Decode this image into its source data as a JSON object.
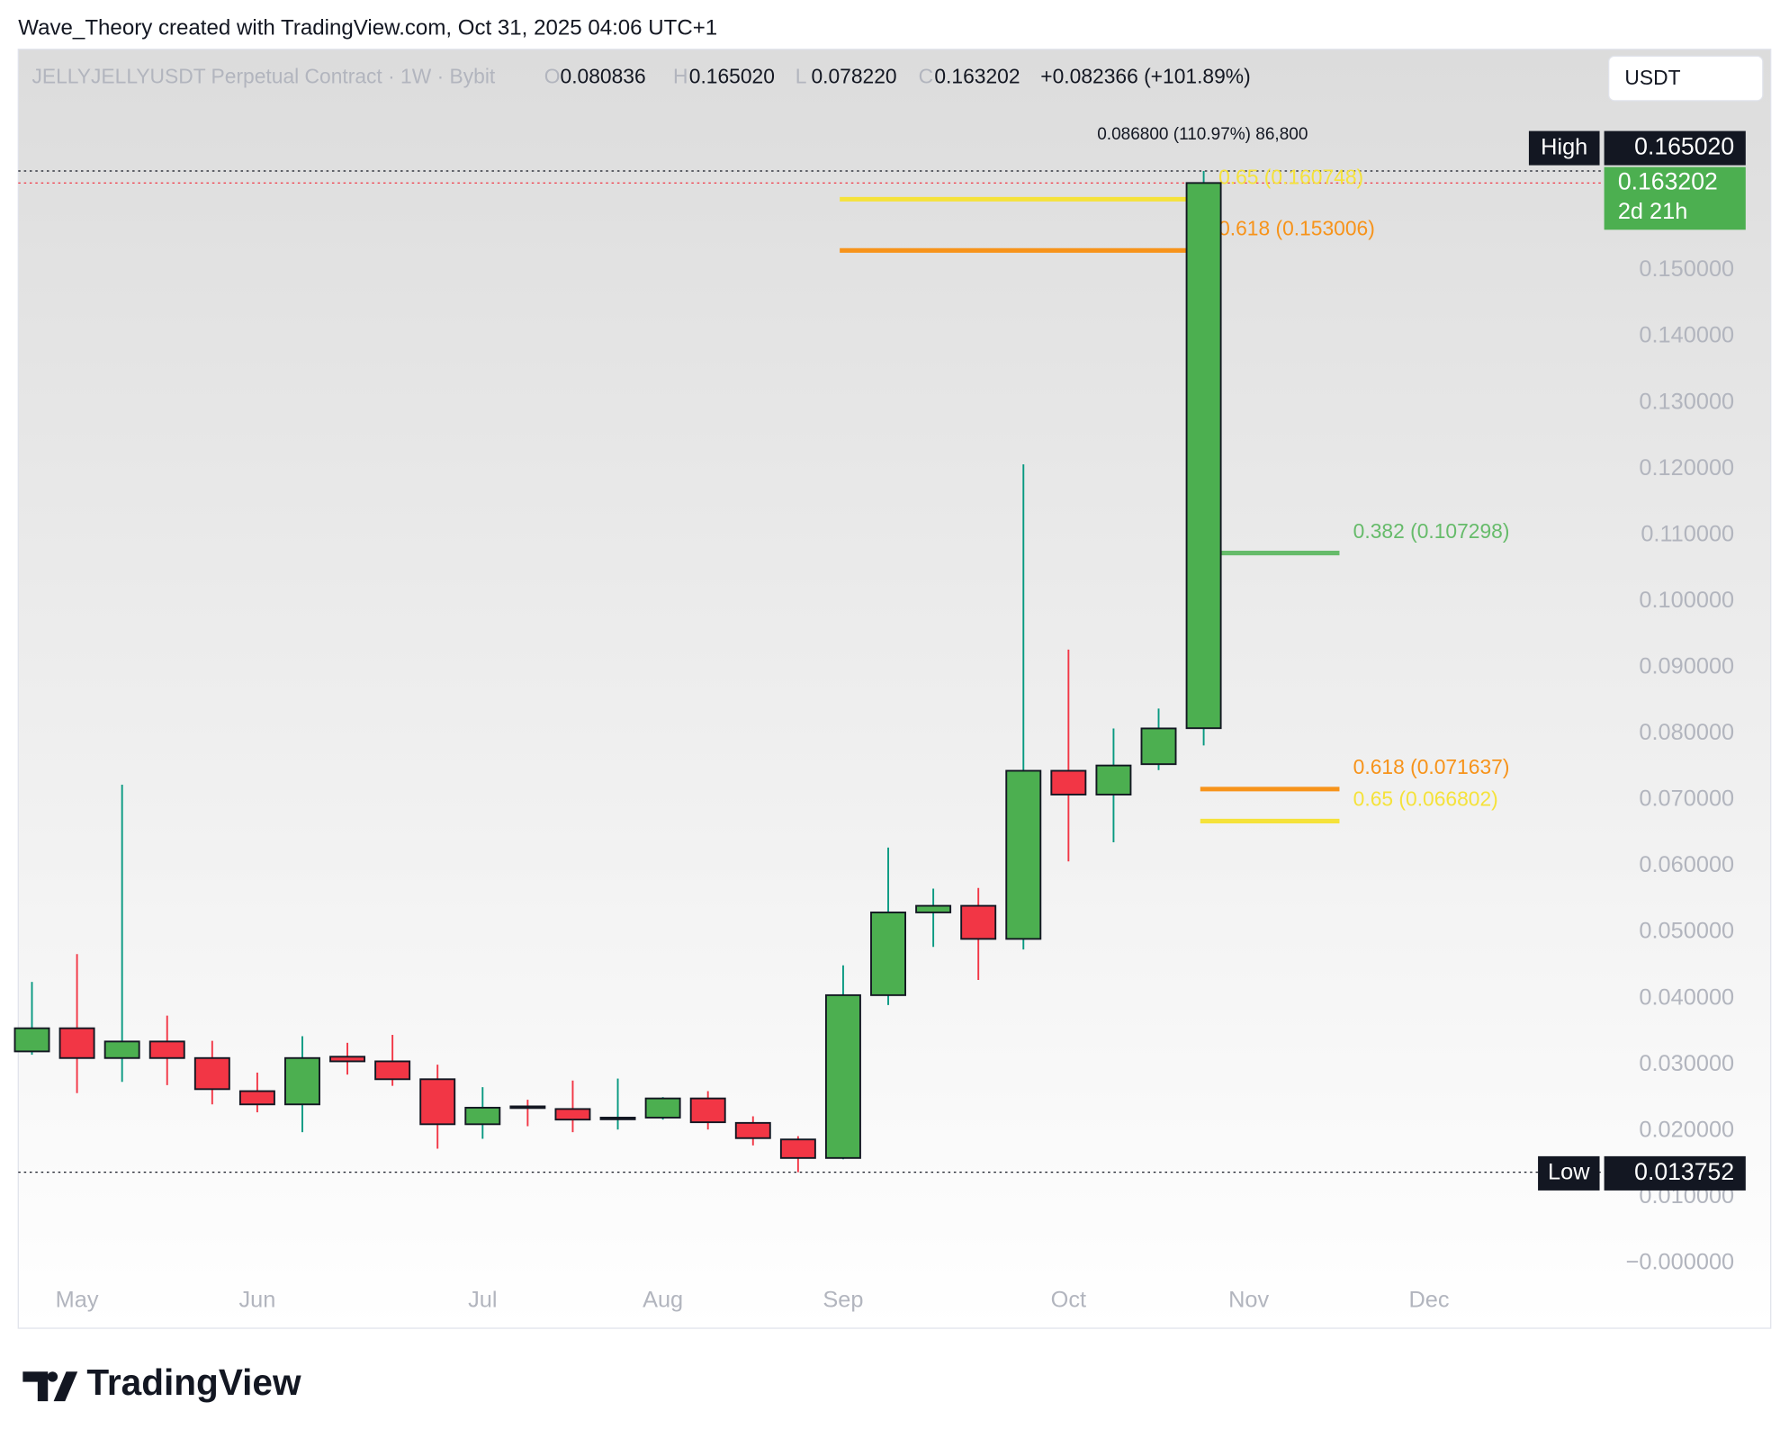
{
  "header": {
    "attribution": "Wave_Theory created with TradingView.com, Oct 31, 2025 04:06 UTC+1",
    "currency": "USDT",
    "logo": "TradingView"
  },
  "chart_data": {
    "type": "candlestick",
    "symbol": "JELLYJELLYUSDT Perpetual Contract · 1W · Bybit",
    "ohlc_legend": [
      {
        "key": "O",
        "text": "0.080836"
      },
      {
        "key": "H",
        "text": "0.165020"
      },
      {
        "key": "L",
        "text": "0.078220"
      },
      {
        "key": "C",
        "text": "0.163202"
      }
    ],
    "change": "+0.082366 (+101.89%)",
    "measure": "0.086800 (110.97%) 86,800",
    "categories": [
      null,
      "May",
      null,
      null,
      null,
      "Jun",
      null,
      null,
      null,
      null,
      "Jul",
      null,
      null,
      null,
      "Aug",
      null,
      null,
      null,
      "Sep",
      null,
      null,
      null,
      null,
      "Oct",
      null,
      null,
      null,
      "Nov",
      null,
      null,
      null,
      "Dec",
      null
    ],
    "open": [
      0.032,
      0.0355,
      0.031,
      0.0335,
      0.031,
      0.026,
      0.024,
      0.0312,
      0.0305,
      0.0278,
      0.021,
      0.0237,
      0.0233,
      0.0218,
      0.022,
      0.0249,
      0.0212,
      0.0187,
      0.0159,
      0.0405,
      0.053,
      0.054,
      0.049,
      0.0744,
      0.0708,
      0.0754,
      0.080836,
      null,
      null,
      null,
      null,
      null,
      null
    ],
    "high": [
      0.0425,
      0.0467,
      0.0723,
      0.0374,
      0.0336,
      0.0288,
      0.0343,
      0.0333,
      0.0345,
      0.03,
      0.0266,
      0.0247,
      0.0276,
      0.0279,
      0.0251,
      0.026,
      0.0222,
      0.0192,
      0.045,
      0.0628,
      0.0566,
      0.0567,
      0.1207,
      0.0927,
      0.0808,
      0.0838,
      0.16502,
      null,
      null,
      null,
      null,
      null,
      null
    ],
    "low": [
      0.0315,
      0.0257,
      0.0274,
      0.0269,
      0.024,
      0.0228,
      0.0198,
      0.0285,
      0.0268,
      0.0173,
      0.0188,
      0.0207,
      0.0198,
      0.0202,
      0.0217,
      0.0202,
      0.0178,
      0.013752,
      0.0157,
      0.039,
      0.0478,
      0.0428,
      0.0474,
      0.0607,
      0.0636,
      0.0745,
      0.07822,
      null,
      null,
      null,
      null,
      null,
      null
    ],
    "close": [
      0.0355,
      0.031,
      0.0335,
      0.031,
      0.0263,
      0.024,
      0.031,
      0.0305,
      0.0278,
      0.021,
      0.0235,
      0.0235,
      0.0217,
      0.022,
      0.0249,
      0.0213,
      0.0189,
      0.0159,
      0.0405,
      0.053,
      0.054,
      0.049,
      0.0744,
      0.0708,
      0.0752,
      0.0808,
      0.163202,
      null,
      null,
      null,
      null,
      null,
      null
    ],
    "up_color": "#4caf50",
    "down_color": "#f23645",
    "ylim": [
      -0.0031,
      0.1834
    ],
    "yticks": [
      {
        "value": 0.15,
        "label": "0.150000"
      },
      {
        "value": 0.14,
        "label": "0.140000"
      },
      {
        "value": 0.13,
        "label": "0.130000"
      },
      {
        "value": 0.12,
        "label": "0.120000"
      },
      {
        "value": 0.11,
        "label": "0.110000"
      },
      {
        "value": 0.1,
        "label": "0.100000"
      },
      {
        "value": 0.09,
        "label": "0.090000"
      },
      {
        "value": 0.08,
        "label": "0.080000"
      },
      {
        "value": 0.07,
        "label": "0.070000"
      },
      {
        "value": 0.06,
        "label": "0.060000"
      },
      {
        "value": 0.05,
        "label": "0.050000"
      },
      {
        "value": 0.04,
        "label": "0.040000"
      },
      {
        "value": 0.03,
        "label": "0.030000"
      },
      {
        "value": 0.02,
        "label": "0.020000"
      },
      {
        "value": 0.01,
        "label": "0.010000"
      },
      {
        "value": 0,
        "label": "−0.000000"
      }
    ],
    "high_marker": {
      "name": "High",
      "value": 0.16502,
      "label": "0.165020"
    },
    "low_marker": {
      "name": "Low",
      "value": 0.013752,
      "label": "0.013752"
    },
    "last_price": {
      "value": 0.163202,
      "label": "0.163202",
      "countdown": "2d 21h"
    },
    "fib_levels": [
      {
        "value": 0.160748,
        "label": "0.65 (0.160748)",
        "color": "#f5e23a"
      },
      {
        "value": 0.153006,
        "label": "0.618 (0.153006)",
        "color": "#f7931a"
      },
      {
        "value": 0.107298,
        "label": "0.382 (0.107298)",
        "color": "#66bb6a"
      },
      {
        "value": 0.071637,
        "label": "0.618 (0.071637)",
        "color": "#f7931a"
      },
      {
        "value": 0.066802,
        "label": "0.65 (0.066802)",
        "color": "#f5e23a"
      }
    ]
  }
}
